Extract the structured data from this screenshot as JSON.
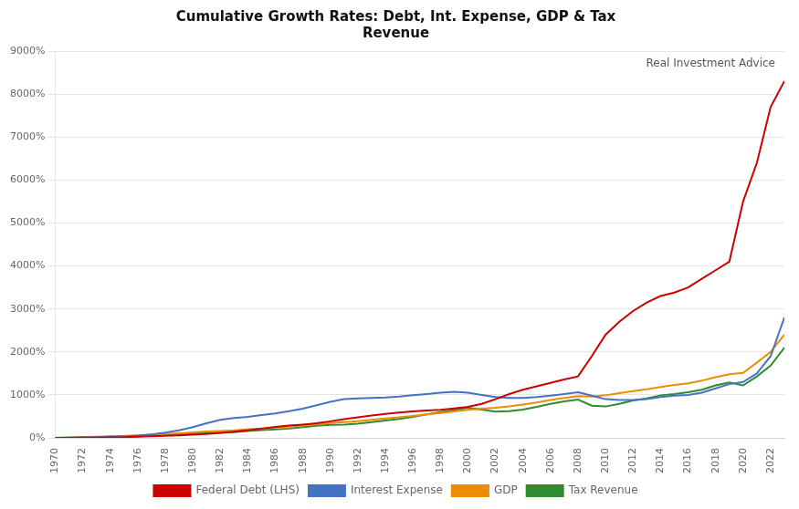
{
  "chart_data": {
    "type": "line",
    "title": "Cumulative Growth Rates: Debt, Int. Expense, GDP & Tax\nRevenue",
    "annotations": [
      {
        "text": "Real Investment Advice"
      }
    ],
    "x": [
      1970,
      1971,
      1972,
      1973,
      1974,
      1975,
      1976,
      1977,
      1978,
      1979,
      1980,
      1981,
      1982,
      1983,
      1984,
      1985,
      1986,
      1987,
      1988,
      1989,
      1990,
      1991,
      1992,
      1993,
      1994,
      1995,
      1996,
      1997,
      1998,
      1999,
      2000,
      2001,
      2002,
      2003,
      2004,
      2005,
      2006,
      2007,
      2008,
      2009,
      2010,
      2011,
      2012,
      2013,
      2014,
      2015,
      2016,
      2017,
      2018,
      2019,
      2020,
      2021,
      2022,
      2023
    ],
    "series": [
      {
        "name": "Federal Debt (LHS)",
        "color": "#cc0000",
        "values": [
          0,
          2,
          5,
          7,
          10,
          18,
          28,
          38,
          48,
          58,
          72,
          90,
          115,
          145,
          175,
          215,
          255,
          285,
          310,
          340,
          385,
          435,
          480,
          520,
          555,
          590,
          615,
          635,
          655,
          685,
          720,
          790,
          900,
          1020,
          1120,
          1200,
          1280,
          1360,
          1430,
          1900,
          2400,
          2700,
          2950,
          3150,
          3300,
          3380,
          3500,
          3700,
          3900,
          4100,
          5500,
          6400,
          7700,
          8300
        ]
      },
      {
        "name": "Interest Expense",
        "color": "#4472c4",
        "values": [
          0,
          5,
          10,
          18,
          28,
          38,
          55,
          80,
          120,
          175,
          250,
          340,
          420,
          460,
          490,
          530,
          570,
          620,
          680,
          760,
          840,
          900,
          920,
          930,
          940,
          960,
          990,
          1020,
          1050,
          1070,
          1050,
          1000,
          950,
          930,
          930,
          950,
          980,
          1020,
          1060,
          980,
          900,
          880,
          880,
          900,
          950,
          980,
          1000,
          1050,
          1150,
          1250,
          1300,
          1500,
          1900,
          2800
        ]
      },
      {
        "name": "GDP",
        "color": "#ed8c00",
        "values": [
          0,
          8,
          16,
          26,
          38,
          45,
          58,
          72,
          90,
          108,
          128,
          148,
          158,
          175,
          200,
          220,
          238,
          258,
          285,
          315,
          345,
          365,
          390,
          420,
          452,
          480,
          512,
          548,
          580,
          615,
          655,
          680,
          700,
          730,
          775,
          825,
          880,
          930,
          970,
          960,
          990,
          1040,
          1090,
          1130,
          1185,
          1230,
          1270,
          1330,
          1410,
          1480,
          1510,
          1750,
          2000,
          2400
        ]
      },
      {
        "name": "Tax Revenue",
        "color": "#2e8b2e",
        "values": [
          0,
          5,
          10,
          18,
          25,
          28,
          38,
          50,
          65,
          82,
          100,
          118,
          118,
          135,
          158,
          178,
          195,
          215,
          248,
          282,
          305,
          310,
          330,
          365,
          405,
          442,
          490,
          545,
          600,
          650,
          700,
          660,
          610,
          620,
          660,
          720,
          790,
          850,
          890,
          750,
          730,
          790,
          870,
          920,
          990,
          1020,
          1060,
          1120,
          1220,
          1290,
          1220,
          1430,
          1680,
          2100
        ]
      }
    ],
    "xlim": [
      1970,
      2023
    ],
    "xticks": [
      1970,
      1972,
      1974,
      1976,
      1978,
      1980,
      1982,
      1984,
      1986,
      1988,
      1990,
      1992,
      1994,
      1996,
      1998,
      2000,
      2002,
      2004,
      2006,
      2008,
      2010,
      2012,
      2014,
      2016,
      2018,
      2020,
      2022
    ],
    "ylim": [
      0,
      9000
    ],
    "yticks": [
      {
        "value": 0,
        "label": "0%"
      },
      {
        "value": 1000,
        "label": "1000%"
      },
      {
        "value": 2000,
        "label": "2000%"
      },
      {
        "value": 3000,
        "label": "3000%"
      },
      {
        "value": 4000,
        "label": "4000%"
      },
      {
        "value": 5000,
        "label": "5000%"
      },
      {
        "value": 6000,
        "label": "6000%"
      },
      {
        "value": 7000,
        "label": "7000%"
      },
      {
        "value": 8000,
        "label": "8000%"
      },
      {
        "value": 9000,
        "label": "9000%"
      }
    ],
    "grid": "y",
    "legend": "bottom"
  }
}
